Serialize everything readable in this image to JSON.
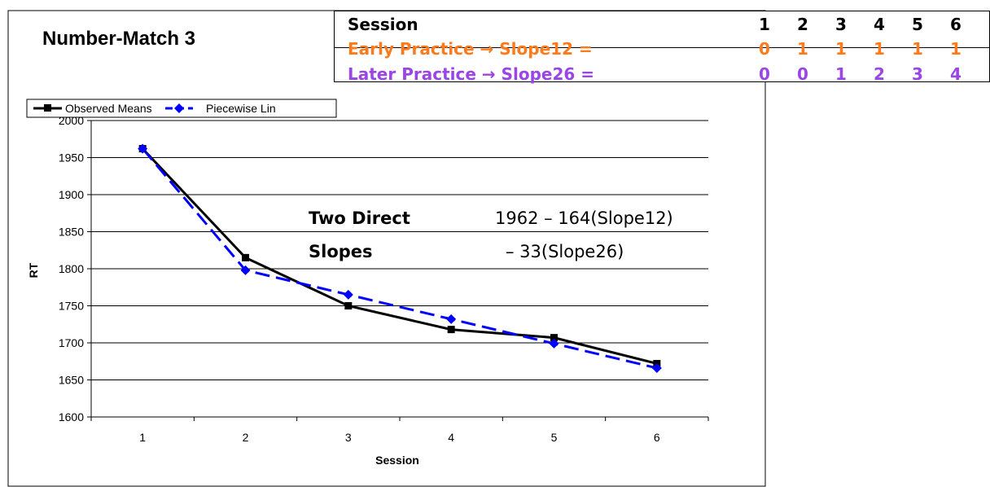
{
  "chart_data": {
    "type": "line",
    "title": "Number-Match 3",
    "xlabel": "Session",
    "ylabel": "RT",
    "categories": [
      "1",
      "2",
      "3",
      "4",
      "5",
      "6"
    ],
    "x_tick_labels": [
      "1",
      "2",
      "3",
      "4",
      "5",
      "6"
    ],
    "y_tick_labels": [
      "1600",
      "1650",
      "1700",
      "1750",
      "1800",
      "1850",
      "1900",
      "1950",
      "2000"
    ],
    "ylim": [
      1600,
      2000
    ],
    "grid": true,
    "legend_position": "top-left",
    "series": [
      {
        "name": "Observed Means",
        "values": [
          1962,
          1815,
          1750,
          1718,
          1707,
          1672
        ],
        "color": "#000000",
        "dash": "solid",
        "marker": "square"
      },
      {
        "name": "Piecewise Lin",
        "values": [
          1962,
          1798,
          1765,
          1732,
          1699,
          1666
        ],
        "color": "#0000ff",
        "dash": "dashed",
        "marker": "diamond"
      }
    ],
    "annotation": {
      "line1_bold": "Two Direct",
      "line1_eq": "1962 – 164(Slope12)",
      "line2_bold": "Slopes",
      "line2_eq": "– 33(Slope26)"
    }
  },
  "table": {
    "header_label": "Session",
    "sessions": [
      "1",
      "2",
      "3",
      "4",
      "5",
      "6"
    ],
    "early_label": "Early Practice → Slope12  =",
    "early_values": [
      "0",
      "1",
      "1",
      "1",
      "1",
      "1"
    ],
    "later_label": "Later Practice → Slope26  =",
    "later_values": [
      "0",
      "0",
      "1",
      "2",
      "3",
      "4"
    ],
    "early_color": "#ff7a1a",
    "later_color": "#9b45e6"
  }
}
